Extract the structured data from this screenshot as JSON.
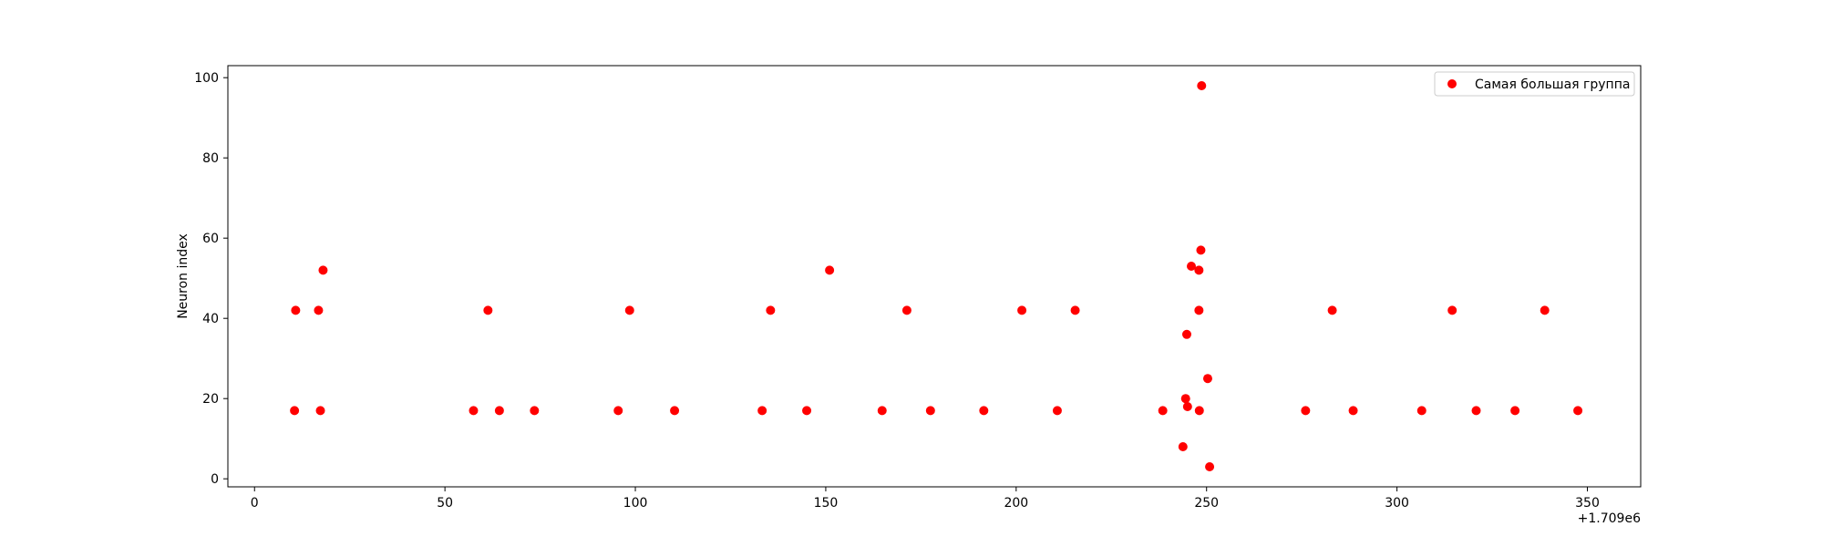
{
  "chart_data": {
    "type": "scatter",
    "title": "",
    "xlabel": "",
    "ylabel": "Neuron index",
    "x_offset_label": "+1.709e6",
    "xlim": [
      -7,
      364
    ],
    "ylim": [
      -2,
      103
    ],
    "xticks": [
      0,
      50,
      100,
      150,
      200,
      250,
      300,
      350
    ],
    "yticks": [
      0,
      20,
      40,
      60,
      80,
      100
    ],
    "grid": false,
    "legend_position": "top-right",
    "series": [
      {
        "name": "Самая большая группа",
        "color": "#ff0000",
        "points": [
          {
            "x": 10.5,
            "y": 17
          },
          {
            "x": 10.8,
            "y": 42
          },
          {
            "x": 16.8,
            "y": 42
          },
          {
            "x": 17.3,
            "y": 17
          },
          {
            "x": 18,
            "y": 52
          },
          {
            "x": 57.5,
            "y": 17
          },
          {
            "x": 61.3,
            "y": 42
          },
          {
            "x": 64.3,
            "y": 17
          },
          {
            "x": 73.5,
            "y": 17
          },
          {
            "x": 95.5,
            "y": 17
          },
          {
            "x": 98.5,
            "y": 42
          },
          {
            "x": 110.3,
            "y": 17
          },
          {
            "x": 133.3,
            "y": 17
          },
          {
            "x": 135.5,
            "y": 42
          },
          {
            "x": 145,
            "y": 17
          },
          {
            "x": 151,
            "y": 52
          },
          {
            "x": 164.8,
            "y": 17
          },
          {
            "x": 171.3,
            "y": 42
          },
          {
            "x": 177.5,
            "y": 17
          },
          {
            "x": 191.5,
            "y": 17
          },
          {
            "x": 201.5,
            "y": 42
          },
          {
            "x": 210.8,
            "y": 17
          },
          {
            "x": 215.5,
            "y": 42
          },
          {
            "x": 238.5,
            "y": 17
          },
          {
            "x": 243.8,
            "y": 8
          },
          {
            "x": 244.5,
            "y": 20
          },
          {
            "x": 244.8,
            "y": 36
          },
          {
            "x": 245,
            "y": 18
          },
          {
            "x": 246,
            "y": 53
          },
          {
            "x": 248,
            "y": 52
          },
          {
            "x": 248,
            "y": 42
          },
          {
            "x": 248.1,
            "y": 17
          },
          {
            "x": 248.5,
            "y": 57
          },
          {
            "x": 248.7,
            "y": 98
          },
          {
            "x": 250.3,
            "y": 25
          },
          {
            "x": 250.8,
            "y": 3
          },
          {
            "x": 276,
            "y": 17
          },
          {
            "x": 283,
            "y": 42
          },
          {
            "x": 288.5,
            "y": 17
          },
          {
            "x": 306.5,
            "y": 17
          },
          {
            "x": 314.5,
            "y": 42
          },
          {
            "x": 320.8,
            "y": 17
          },
          {
            "x": 331,
            "y": 17
          },
          {
            "x": 338.8,
            "y": 42
          },
          {
            "x": 347.5,
            "y": 17
          }
        ]
      }
    ]
  }
}
